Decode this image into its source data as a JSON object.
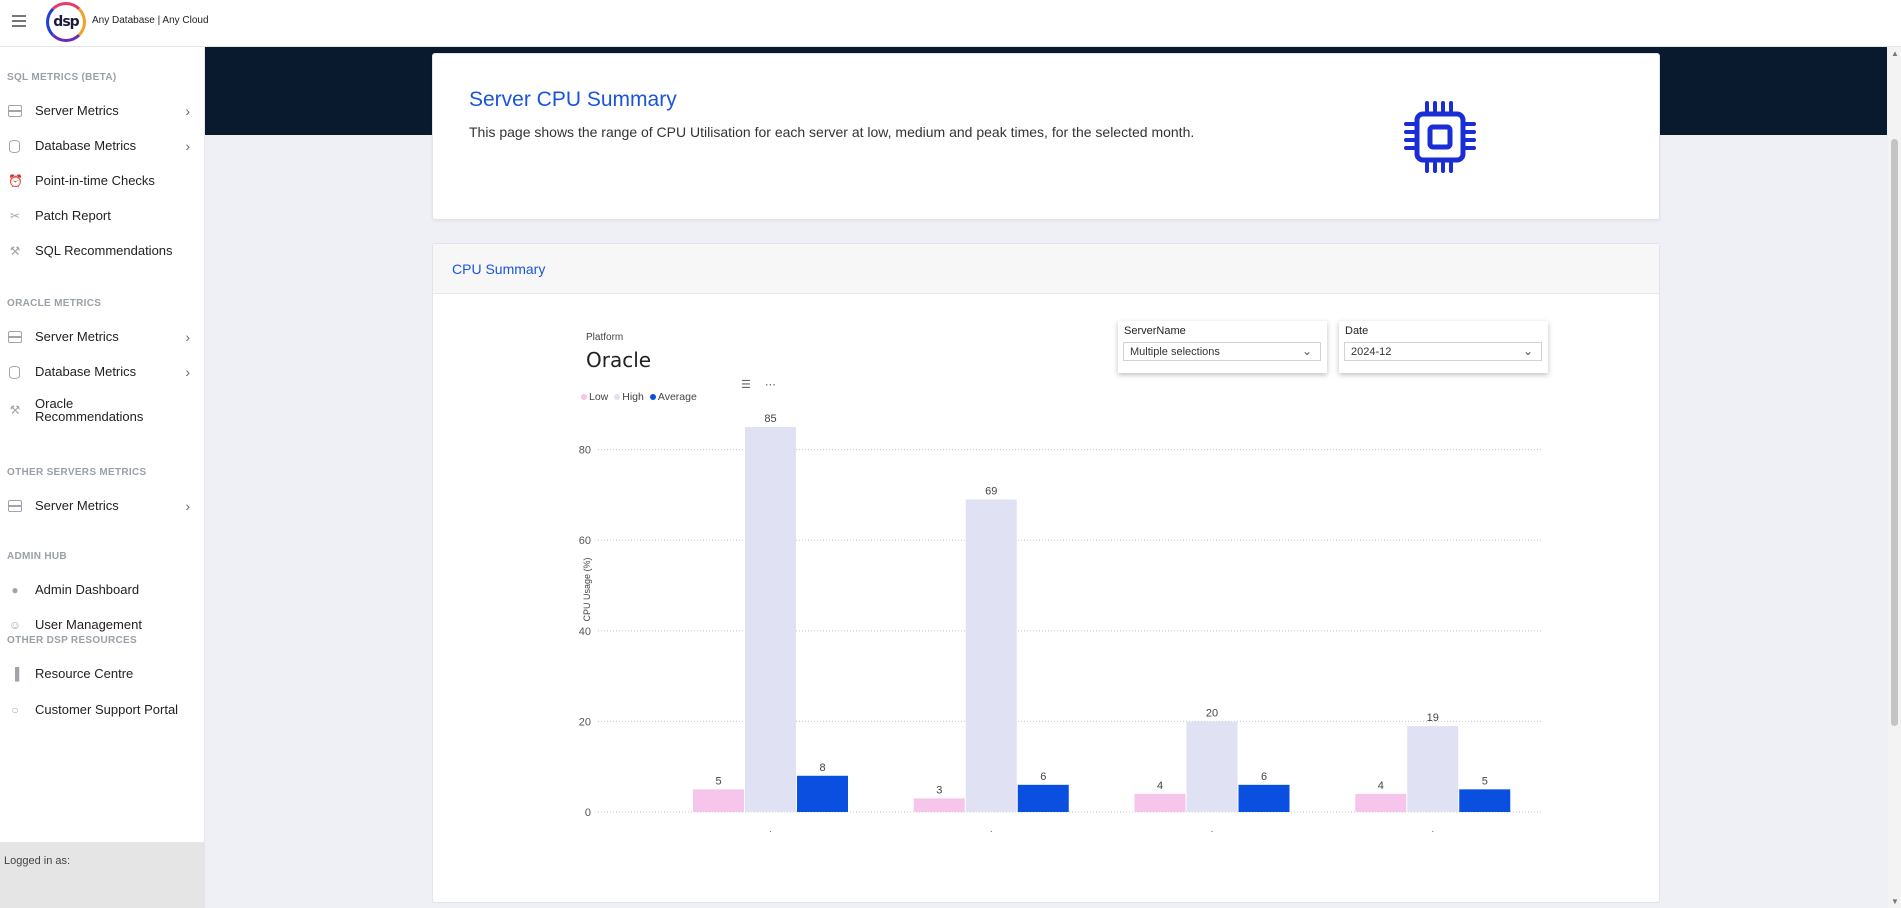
{
  "topbar": {
    "logo_text": "dsp",
    "tagline": "Any Database | Any Cloud"
  },
  "sidebar": {
    "sections": [
      {
        "title": "SQL METRICS (BETA)",
        "items": [
          {
            "label": "Server Metrics",
            "icon": "server-icon",
            "chevron": true
          },
          {
            "label": "Database Metrics",
            "icon": "database-icon",
            "chevron": true
          },
          {
            "label": "Point-in-time Checks",
            "icon": "alarm-clock-icon",
            "chevron": false
          },
          {
            "label": "Patch Report",
            "icon": "bandage-icon",
            "chevron": false
          },
          {
            "label": "SQL Recommendations",
            "icon": "wrench-icon",
            "chevron": false
          }
        ]
      },
      {
        "title": "ORACLE METRICS",
        "items": [
          {
            "label": "Server Metrics",
            "icon": "server-icon",
            "chevron": true
          },
          {
            "label": "Database Metrics",
            "icon": "database-icon",
            "chevron": true
          },
          {
            "label": "Oracle Recommendations",
            "icon": "wrench-icon",
            "chevron": false
          }
        ]
      },
      {
        "title": "OTHER SERVERS METRICS",
        "items": [
          {
            "label": "Server Metrics",
            "icon": "server-icon",
            "chevron": true
          }
        ]
      },
      {
        "title": "ADMIN HUB",
        "items": [
          {
            "label": "Admin Dashboard",
            "icon": "user-icon",
            "chevron": false
          },
          {
            "label": "User Management",
            "icon": "users-icon",
            "chevron": false
          }
        ]
      },
      {
        "title": "OTHER DSP RESOURCES",
        "items": [
          {
            "label": "Resource Centre",
            "icon": "bar-chart-icon",
            "chevron": false
          },
          {
            "label": "Customer Support Portal",
            "icon": "chat-icon",
            "chevron": false
          }
        ]
      }
    ],
    "logged_in_label": "Logged in as:"
  },
  "summary": {
    "title": "Server CPU Summary",
    "description": "This page shows the range of CPU Utilisation for each server at low, medium and peak times, for the selected month."
  },
  "cpu_card": {
    "header": "CPU Summary",
    "platform_label": "Platform",
    "platform_value": "Oracle",
    "server_slicer": {
      "title": "ServerName",
      "value": "Multiple selections"
    },
    "date_slicer": {
      "title": "Date",
      "value": "2024-12"
    }
  },
  "chart_data": {
    "type": "bar",
    "ylabel": "CPU Usage (%)",
    "xlabel": "",
    "ylim": [
      0,
      85
    ],
    "yticks": [
      0,
      20,
      40,
      60,
      80
    ],
    "categories": [
      "",
      "",
      "",
      ""
    ],
    "series": [
      {
        "name": "Low",
        "color": "#f6c5ec",
        "values": [
          5,
          3,
          4,
          4
        ]
      },
      {
        "name": "High",
        "color": "#e1e1f4",
        "values": [
          85,
          69,
          20,
          19
        ]
      },
      {
        "name": "Average",
        "color": "#0a4fe0",
        "values": [
          8,
          6,
          6,
          5
        ]
      }
    ],
    "grid": true,
    "legend": "top-left"
  },
  "colors": {
    "accent": "#1a55d8",
    "navy": "#0a1a2e"
  }
}
